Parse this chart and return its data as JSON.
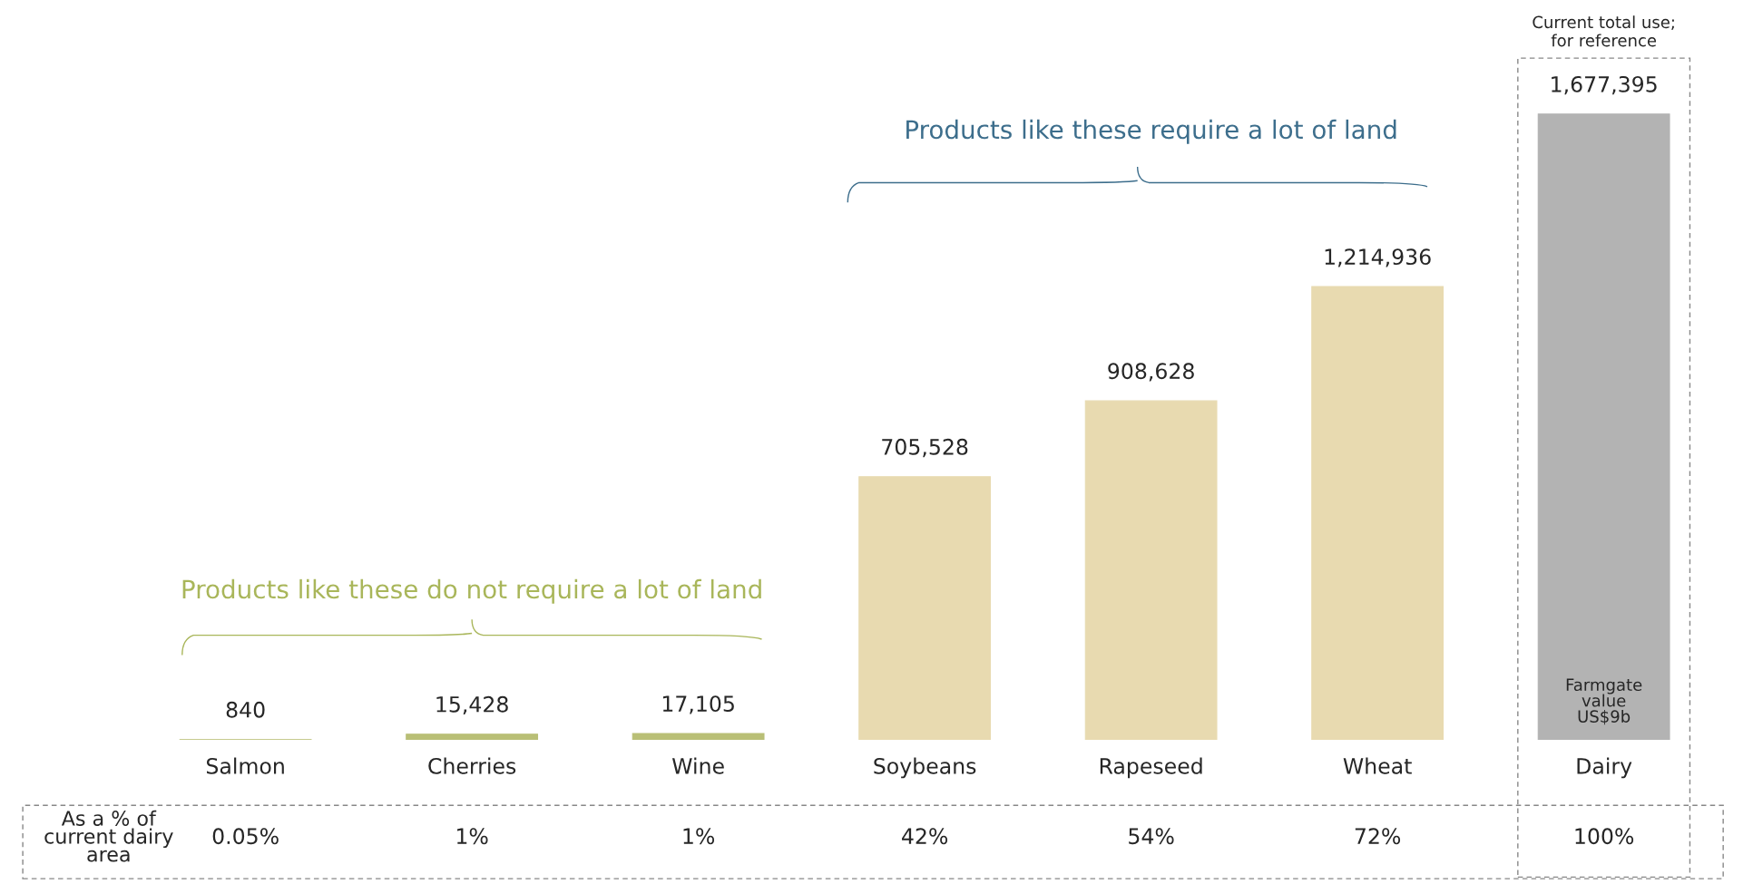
{
  "chart_data": {
    "type": "bar",
    "categories": [
      "Salmon",
      "Cherries",
      "Wine",
      "Soybeans",
      "Rapeseed",
      "Wheat",
      "Dairy"
    ],
    "values": [
      840,
      15428,
      17105,
      705528,
      908628,
      1214936,
      1677395
    ],
    "colors": [
      "#b9bf76",
      "#b9bf76",
      "#b9bf76",
      "#e8dab0",
      "#e8dab0",
      "#e8dab0",
      "#b3b3b3"
    ],
    "value_labels": [
      "840",
      "15,428",
      "17,105",
      "705,528",
      "908,628",
      "1,214,936",
      "1,677,395"
    ],
    "grid": false,
    "legend": false,
    "annotations": [
      "Products like these do not require a lot of land",
      "Products like these require a lot of land",
      "Current total use;\nfor reference",
      "As a % of\ncurrent dairy\narea",
      "Farmgate\nvalue\nUS$9b",
      "0.05%",
      "1%",
      "1%",
      "42%",
      "54%",
      "72%",
      "100%"
    ]
  }
}
